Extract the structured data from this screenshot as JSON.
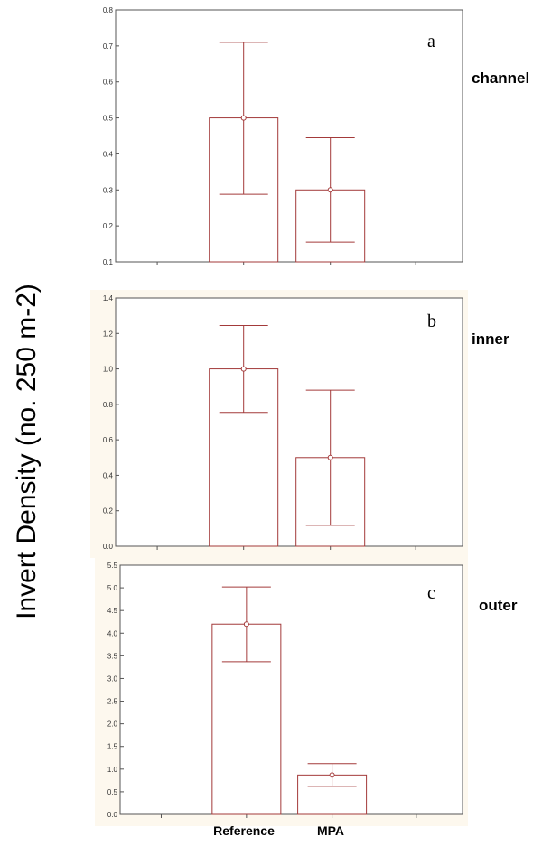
{
  "y_axis_label": "Invert Density (no. 250 m-2)",
  "x_categories": [
    "Reference",
    "MPA"
  ],
  "colors": {
    "mark": "#a33a3a",
    "frame": "#555555",
    "panel_bg": "#fdf8ee"
  },
  "chart_data": [
    {
      "type": "bar",
      "panel_letter": "a",
      "panel_caption": "channel",
      "categories": [
        "Reference",
        "MPA"
      ],
      "values": [
        0.5,
        0.3
      ],
      "error_upper": [
        0.71,
        0.445
      ],
      "error_lower": [
        0.288,
        0.155
      ],
      "ylim": [
        0.1,
        0.8
      ],
      "yticks": [
        "0.1",
        "0.2",
        "0.3",
        "0.4",
        "0.5",
        "0.6",
        "0.7",
        "0.8"
      ],
      "x_tick_labels_shown": false,
      "grid": false
    },
    {
      "type": "bar",
      "panel_letter": "b",
      "panel_caption": "inner",
      "categories": [
        "Reference",
        "MPA"
      ],
      "values": [
        1.0,
        0.5
      ],
      "error_upper": [
        1.245,
        0.88
      ],
      "error_lower": [
        0.755,
        0.118
      ],
      "ylim": [
        0.0,
        1.4
      ],
      "yticks": [
        "0.0",
        "0.2",
        "0.4",
        "0.6",
        "0.8",
        "1.0",
        "1.2",
        "1.4"
      ],
      "x_tick_labels_shown": false,
      "grid": false
    },
    {
      "type": "bar",
      "panel_letter": "c",
      "panel_caption": "outer",
      "categories": [
        "Reference",
        "MPA"
      ],
      "values": [
        4.2,
        0.87
      ],
      "error_upper": [
        5.02,
        1.12
      ],
      "error_lower": [
        3.37,
        0.62
      ],
      "ylim": [
        0.0,
        5.5
      ],
      "yticks": [
        "0.0",
        "0.5",
        "1.0",
        "1.5",
        "2.0",
        "2.5",
        "3.0",
        "3.5",
        "4.0",
        "4.5",
        "5.0",
        "5.5"
      ],
      "x_tick_labels_shown": true,
      "grid": false
    }
  ]
}
